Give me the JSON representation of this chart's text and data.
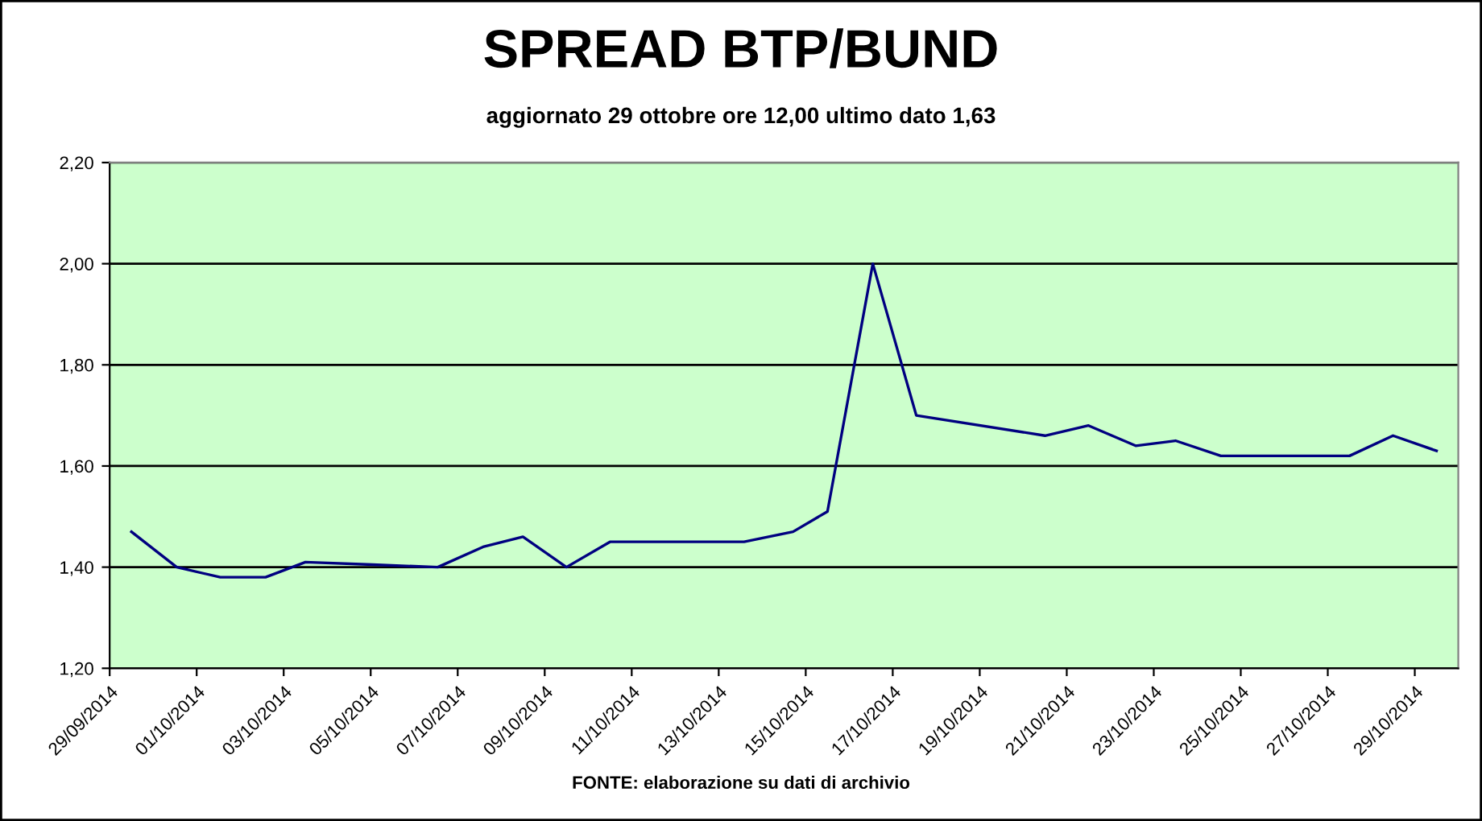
{
  "chart_data": {
    "type": "line",
    "title": "SPREAD BTP/BUND",
    "subtitle": "aggiornato 29 ottobre ore 12,00 ultimo dato 1,63",
    "annotations": [
      "FONTE: elaborazione su dati di archivio"
    ],
    "x": [
      "2014-09-29T12:00",
      "2014-09-30T13:00",
      "2014-10-01T13:00",
      "2014-10-02T14:00",
      "2014-10-03T12:00",
      "2014-10-05T01:00",
      "2014-10-06T13:00",
      "2014-10-07T14:00",
      "2014-10-08T12:00",
      "2014-10-09T12:00",
      "2014-10-10T12:00",
      "2014-10-13T14:00",
      "2014-10-14T17:00",
      "2014-10-15T12:00",
      "2014-10-16T13:00",
      "2014-10-17T13:00",
      "2014-10-20T12:00",
      "2014-10-21T12:00",
      "2014-10-22T14:00",
      "2014-10-23T12:00",
      "2014-10-24T13:00",
      "2014-10-27T12:00",
      "2014-10-28T12:00",
      "2014-10-29T12:00"
    ],
    "series": [
      {
        "color": "#000080",
        "values": [
          1.47,
          1.4,
          1.38,
          1.38,
          1.41,
          1.405,
          1.4,
          1.44,
          1.46,
          1.4,
          1.45,
          1.45,
          1.47,
          1.51,
          2.0,
          1.7,
          1.66,
          1.68,
          1.64,
          1.65,
          1.62,
          1.62,
          1.66,
          1.63
        ]
      }
    ],
    "xlim": [
      "2014-09-29",
      "2014-10-30"
    ],
    "xticks": [
      {
        "value": "2014-09-29",
        "label": "29/09/2014"
      },
      {
        "value": "2014-10-01",
        "label": "01/10/2014"
      },
      {
        "value": "2014-10-03",
        "label": "03/10/2014"
      },
      {
        "value": "2014-10-05",
        "label": "05/10/2014"
      },
      {
        "value": "2014-10-07",
        "label": "07/10/2014"
      },
      {
        "value": "2014-10-09",
        "label": "09/10/2014"
      },
      {
        "value": "2014-10-11",
        "label": "11/10/2014"
      },
      {
        "value": "2014-10-13",
        "label": "13/10/2014"
      },
      {
        "value": "2014-10-15",
        "label": "15/10/2014"
      },
      {
        "value": "2014-10-17",
        "label": "17/10/2014"
      },
      {
        "value": "2014-10-19",
        "label": "19/10/2014"
      },
      {
        "value": "2014-10-21",
        "label": "21/10/2014"
      },
      {
        "value": "2014-10-23",
        "label": "23/10/2014"
      },
      {
        "value": "2014-10-25",
        "label": "25/10/2014"
      },
      {
        "value": "2014-10-27",
        "label": "27/10/2014"
      },
      {
        "value": "2014-10-29",
        "label": "29/10/2014"
      }
    ],
    "ylim": [
      1.2,
      2.2
    ],
    "yticks": [
      {
        "value": 1.2,
        "label": "1,20"
      },
      {
        "value": 1.4,
        "label": "1,40"
      },
      {
        "value": 1.6,
        "label": "1,60"
      },
      {
        "value": 1.8,
        "label": "1,80"
      },
      {
        "value": 2.0,
        "label": "2,00"
      },
      {
        "value": 2.2,
        "label": "2,20"
      }
    ],
    "grid": "y",
    "legend": false,
    "marker": "none",
    "line_style": "solid"
  }
}
